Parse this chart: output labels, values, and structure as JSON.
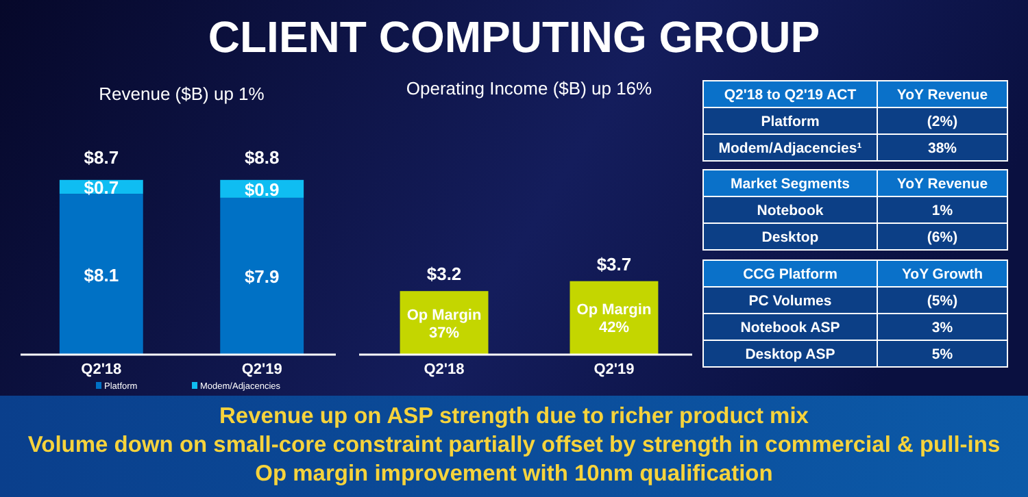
{
  "chart_data": [
    {
      "type": "bar",
      "title": "CLIENT COMPUTING GROUP",
      "subtitle": "Revenue ($B) up 1%",
      "categories": [
        "Q2'18",
        "Q2'19"
      ],
      "stacked": true,
      "tick_labels": "x",
      "legend": "bottom",
      "series": [
        {
          "name": "Platform",
          "color": "#0071c5",
          "values": [
            8.1,
            7.9
          ],
          "value_labels": [
            "$8.1",
            "$7.9"
          ]
        },
        {
          "name": "Modem/Adjacencies",
          "color": "#0fbdf2",
          "values": [
            0.7,
            0.9
          ],
          "value_labels": [
            "$0.7",
            "$0.9"
          ]
        }
      ],
      "totals": [
        "$8.7",
        "$8.8"
      ],
      "annotations": [
        "Revenue up on ASP strength due to richer product mix",
        "Volume down on small-core constraint partially offset by strength in commercial & pull-ins",
        "Op margin improvement with 10nm qualification"
      ]
    },
    {
      "type": "bar",
      "title": "Operating Income ($B) up 16%",
      "categories": [
        "Q2'18",
        "Q2'19"
      ],
      "tick_labels": "x",
      "series": [
        {
          "color": "#c4d600",
          "values": [
            3.2,
            3.7
          ],
          "value_labels": [
            "$3.2",
            "$3.7"
          ]
        }
      ],
      "annotations": [
        "Op Margin 37%",
        "Op Margin 42%"
      ]
    },
    {
      "type": "other",
      "annotations": [
        "Q2'18 to Q2'19 ACT",
        "YoY Revenue",
        "Platform",
        "(2%)",
        "Modem/Adjacencies¹",
        "38%"
      ]
    },
    {
      "type": "other",
      "annotations": [
        "Market Segments",
        "YoY Revenue",
        "Notebook",
        "1%",
        "Desktop",
        "(6%)"
      ]
    },
    {
      "type": "other",
      "annotations": [
        "CCG Platform",
        "YoY Growth",
        "PC Volumes",
        "(5%)",
        "Notebook ASP",
        "3%",
        "Desktop ASP",
        "5%"
      ]
    }
  ]
}
